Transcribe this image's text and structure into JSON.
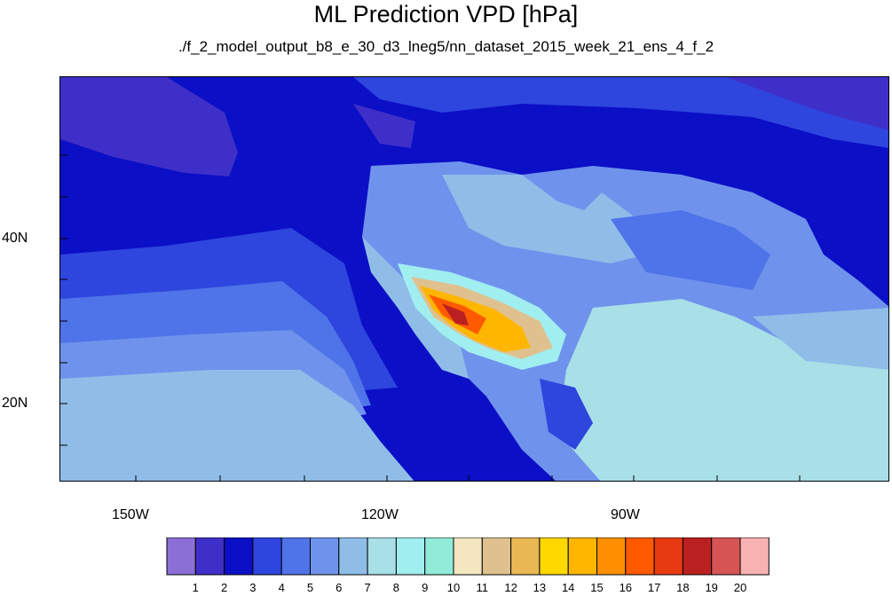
{
  "title": "ML Prediction VPD [hPa]",
  "subtitle": "./f_2_model_output_b8_e_30_d3_lneg5/nn_dataset_2015_week_21_ens_4_f_2",
  "map": {
    "lon_range": [
      -160,
      -60
    ],
    "lat_range": [
      10,
      59
    ],
    "lon_ticks": [
      "150W",
      "120W",
      "90W"
    ],
    "lat_ticks": [
      "40N",
      "20N"
    ]
  },
  "colorbar": {
    "labels": [
      "1",
      "2",
      "3",
      "4",
      "5",
      "6",
      "7",
      "8",
      "9",
      "10",
      "11",
      "12",
      "13",
      "14",
      "15",
      "16",
      "17",
      "18",
      "19",
      "20"
    ],
    "colors": [
      "#8b6fd6",
      "#3f2fc9",
      "#0b0fc6",
      "#2e45de",
      "#4f73e8",
      "#6f93ec",
      "#8fbde8",
      "#a9dfe6",
      "#a1eef0",
      "#90ebd9",
      "#f3e6c0",
      "#dfc18f",
      "#e9b855",
      "#ffd800",
      "#ffb600",
      "#ff8f00",
      "#ff5a00",
      "#e83a12",
      "#bb2020",
      "#d65454",
      "#f9b2b2"
    ]
  }
}
